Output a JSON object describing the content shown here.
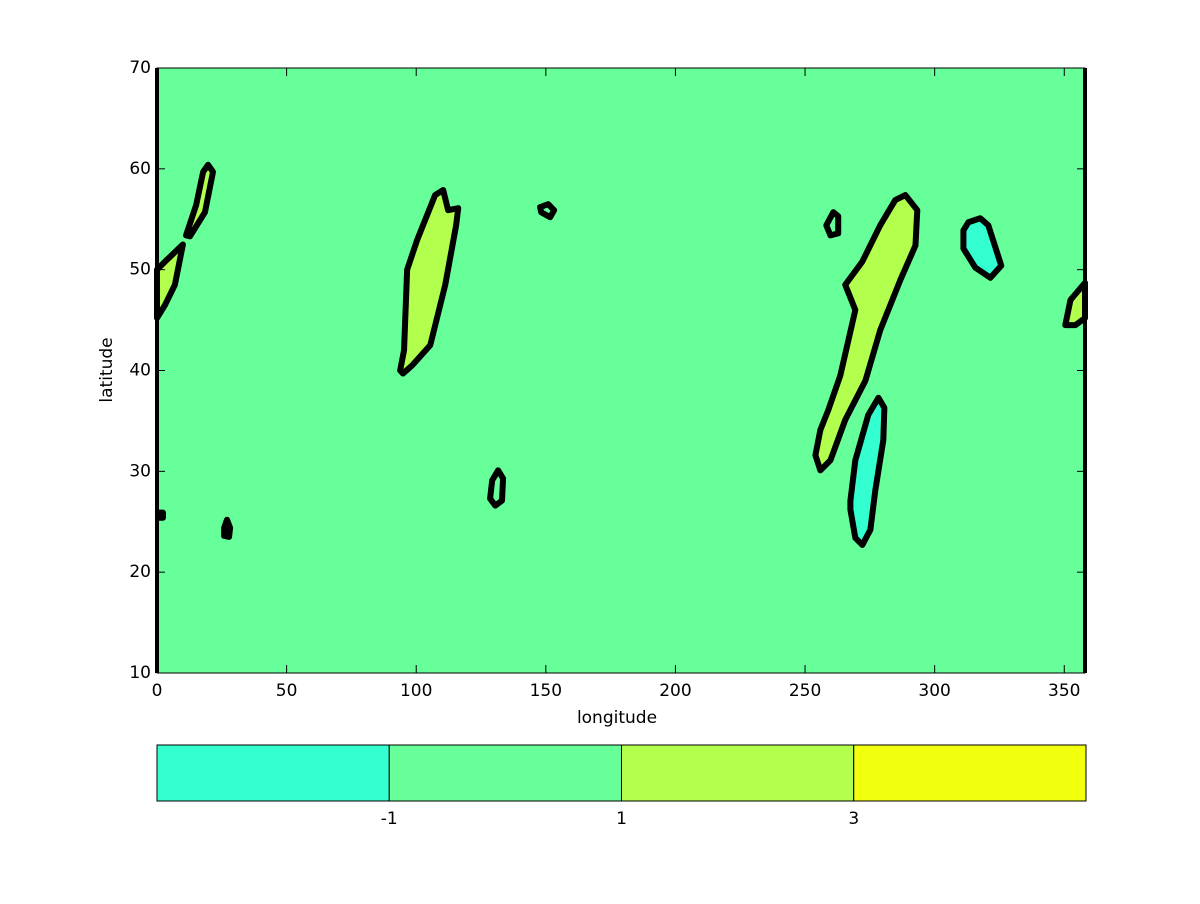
{
  "chart_data": {
    "type": "contour",
    "x_label": "longitude",
    "y_label": "latitude",
    "xlim": [
      0,
      358
    ],
    "ylim": [
      10,
      70
    ],
    "xticks": [
      0,
      50,
      100,
      150,
      200,
      250,
      300,
      350
    ],
    "yticks": [
      10,
      20,
      30,
      40,
      50,
      60,
      70
    ],
    "background_color": "#66ff99",
    "contours": [
      {
        "color": "#b2ff4d",
        "lon": [
          11.2,
          15.1,
          17.8,
          19.7,
          21.6,
          18.5,
          12.7
        ],
        "lat": [
          53.4,
          56.4,
          59.7,
          60.4,
          59.7,
          55.7,
          53.3
        ]
      },
      {
        "color": "#b2ff4d",
        "lon": [
          0,
          3.1,
          10,
          6.9,
          3.1,
          0
        ],
        "lat": [
          50,
          50.8,
          52.5,
          48.5,
          46.5,
          45.2
        ]
      },
      {
        "color": "#b2ff4d",
        "lon": [
          93.8,
          95.3,
          96.5,
          100.3,
          107.3,
          110.4,
          112.3,
          116.2,
          115.4,
          111.2,
          105.4,
          98.4,
          94.9
        ],
        "lat": [
          40.0,
          42.0,
          50.0,
          52.9,
          57.4,
          57.9,
          55.9,
          56.1,
          54.4,
          48.5,
          42.5,
          40.5,
          39.7
        ]
      },
      {
        "color": "#66ff99",
        "lon": [
          147.8,
          150.9,
          153.2,
          151.7,
          148.2
        ],
        "lat": [
          56.2,
          56.5,
          55.9,
          55.2,
          55.7
        ]
      },
      {
        "color": "#66ff99",
        "lon": [
          128.5,
          129.3,
          131.6,
          133.5,
          133.1,
          130.5
        ],
        "lat": [
          27.3,
          29.1,
          30.1,
          29.3,
          27.1,
          26.6
        ]
      },
      {
        "color": "#66ff99",
        "lon": [
          25.9,
          27.0,
          28.2,
          27.8,
          25.9
        ],
        "lat": [
          24.4,
          25.2,
          24.4,
          23.5,
          23.6
        ]
      },
      {
        "color": "#66ff99",
        "lon": [
          0.4,
          2.3,
          2.3,
          0.4
        ],
        "lat": [
          25.9,
          25.9,
          25.4,
          25.4
        ]
      },
      {
        "color": "#b2ff4d",
        "lon": [
          254.0,
          255.9,
          259.0,
          263.6,
          269.4,
          265.5,
          272.1,
          279.0,
          284.8,
          288.7,
          293.3,
          292.6,
          286.8,
          279.0,
          273.3,
          265.5,
          259.8,
          255.9
        ],
        "lat": [
          31.6,
          34.1,
          36.1,
          39.5,
          46.0,
          48.5,
          50.8,
          54.4,
          56.9,
          57.4,
          55.9,
          52.4,
          49.0,
          44.0,
          39.0,
          35.1,
          31.1,
          30.1
        ]
      },
      {
        "color": "#33ffd1",
        "lon": [
          267.5,
          269.4,
          274.4,
          278.3,
          280.6,
          280.2,
          277.1,
          275.2,
          272.1,
          269.4,
          267.5
        ],
        "lat": [
          27.1,
          31.1,
          35.6,
          37.3,
          36.3,
          33.1,
          28.1,
          24.2,
          22.7,
          23.4,
          26.2
        ]
      },
      {
        "color": "#33ffd1",
        "lon": [
          311.1,
          313.0,
          317.6,
          320.7,
          325.7,
          321.5,
          315.7,
          311.1
        ],
        "lat": [
          53.9,
          54.7,
          55.1,
          54.4,
          50.4,
          49.2,
          50.2,
          52.1
        ]
      },
      {
        "color": "#66ff99",
        "lon": [
          258.2,
          260.9,
          262.8,
          262.8,
          259.8
        ],
        "lat": [
          54.4,
          55.7,
          55.3,
          53.6,
          53.4
        ]
      },
      {
        "color": "#b2ff4d",
        "lon": [
          350.4,
          352.4,
          358,
          358,
          354.3
        ],
        "lat": [
          44.5,
          47.0,
          48.7,
          45.2,
          44.5
        ]
      }
    ],
    "colorbar": {
      "colors": [
        "#33ffd1",
        "#66ff99",
        "#b2ff4d",
        "#f2ff0d"
      ],
      "ticks": [
        -1,
        1,
        3
      ]
    }
  }
}
